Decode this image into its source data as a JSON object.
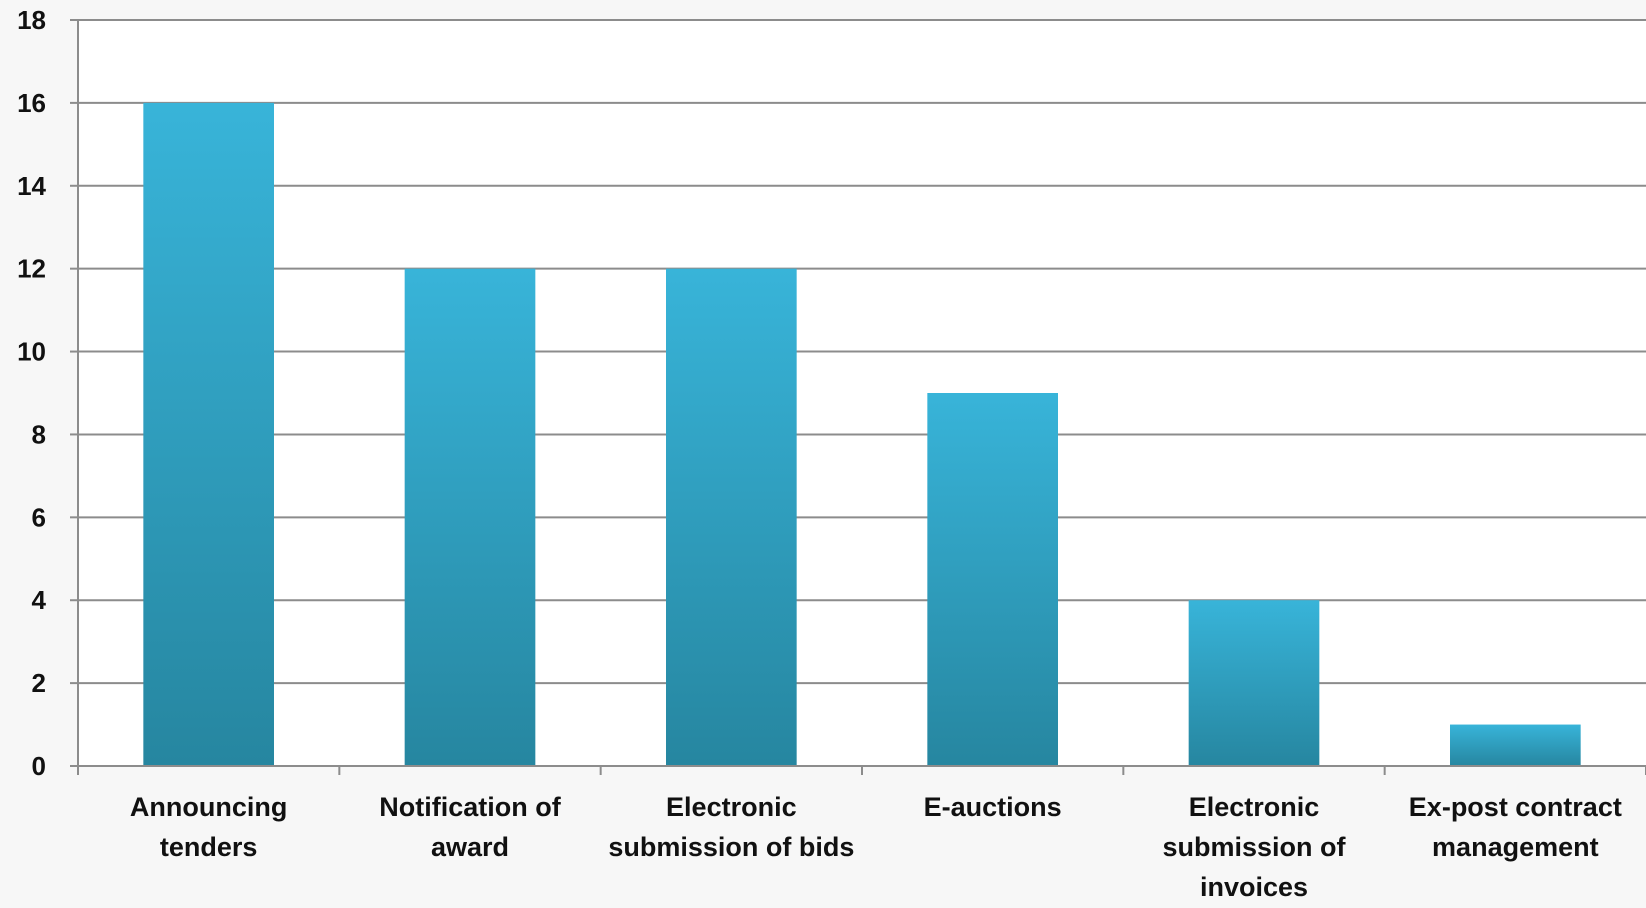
{
  "chart_data": {
    "type": "bar",
    "categories": [
      [
        "Announcing",
        "tenders"
      ],
      [
        "Notification of",
        "award"
      ],
      [
        "Electronic",
        "submission of bids"
      ],
      [
        "E-auctions"
      ],
      [
        "Electronic",
        "submission of",
        "invoices"
      ],
      [
        "Ex-post contract",
        "management"
      ]
    ],
    "values": [
      16,
      12,
      12,
      9,
      4,
      1
    ],
    "ylim": [
      0,
      18
    ],
    "yticks": [
      0,
      2,
      4,
      6,
      8,
      10,
      12,
      14,
      16,
      18
    ],
    "grid": true,
    "legend": "none",
    "colors": {
      "bar_top": "#38b4d9",
      "bar_bottom": "#2686a0",
      "gridline": "#8c8c8c",
      "axis": "#8c8c8c",
      "plot_background": "#ffffff",
      "page_background": "#f7f7f7"
    }
  }
}
